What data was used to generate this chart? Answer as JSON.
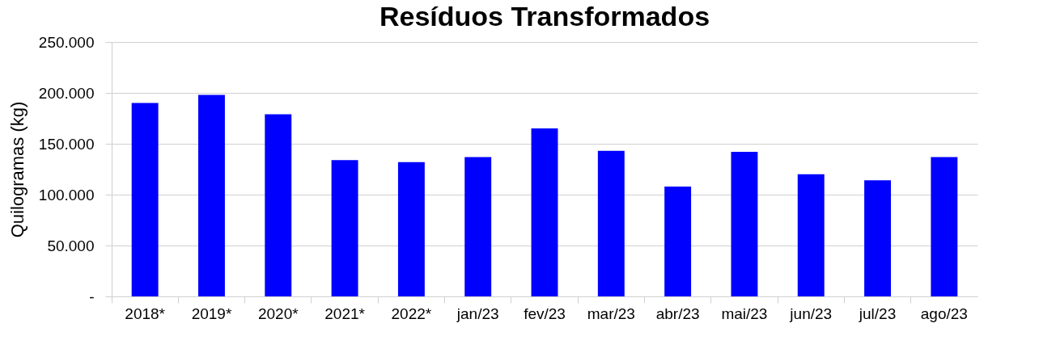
{
  "chart_data": {
    "type": "bar",
    "title": "Resíduos Transformados",
    "ylabel": "Quilogramas (kg)",
    "categories": [
      "2018*",
      "2019*",
      "2020*",
      "2021*",
      "2022*",
      "jan/23",
      "fev/23",
      "mar/23",
      "abr/23",
      "mai/23",
      "jun/23",
      "jul/23",
      "ago/23"
    ],
    "values": [
      190000,
      198000,
      179000,
      134000,
      132000,
      137000,
      165000,
      143000,
      108000,
      142000,
      120000,
      114000,
      137000
    ],
    "color": "#0000ff",
    "ylim": [
      0,
      250000
    ],
    "yticks": [
      {
        "value": 0,
        "label": "-"
      },
      {
        "value": 50000,
        "label": "50.000"
      },
      {
        "value": 100000,
        "label": "100.000"
      },
      {
        "value": 150000,
        "label": "150.000"
      },
      {
        "value": 200000,
        "label": "200.000"
      },
      {
        "value": 250000,
        "label": "250.000"
      }
    ],
    "grid": "y"
  }
}
